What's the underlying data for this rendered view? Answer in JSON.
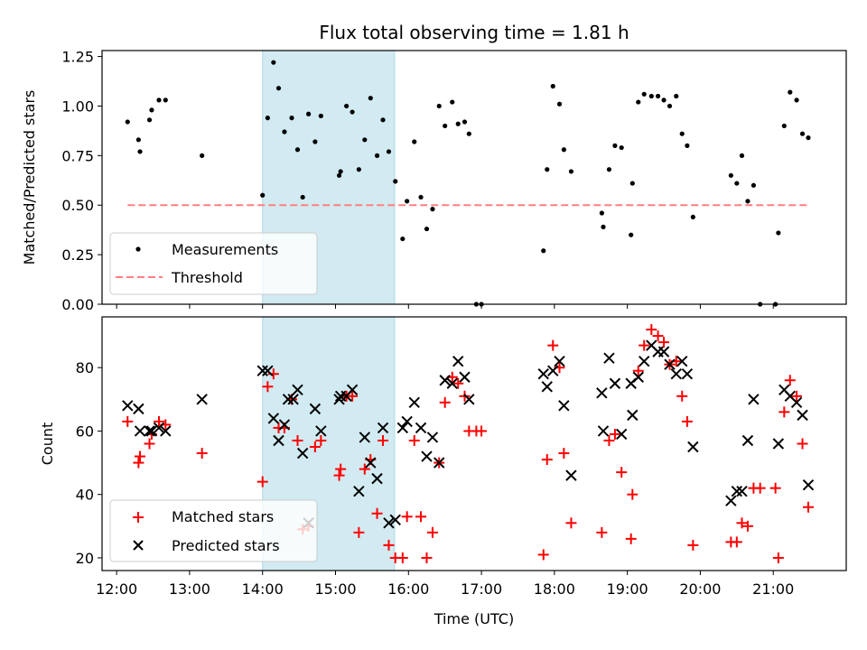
{
  "title": "Flux total observing time = 1.81 h",
  "colors": {
    "measurement": "#000000",
    "threshold": "#ff7f7f",
    "span": "#add8e6",
    "matched": "#ff0000",
    "predicted": "#000000"
  },
  "chart_data": [
    {
      "type": "scatter",
      "panel": "top",
      "ylabel": "Matched/Predicted stars",
      "xlabel": "",
      "xlim": [
        11.8,
        22.0
      ],
      "ylim": [
        0,
        1.28
      ],
      "yticks": [
        0,
        0.25,
        0.5,
        0.75,
        1.0,
        1.25
      ],
      "ytick_labels": [
        "0.00",
        "0.25",
        "0.50",
        "0.75",
        "1.00",
        "1.25"
      ],
      "highlight_span": [
        14.0,
        15.81
      ],
      "threshold": {
        "name": "Threshold",
        "value": 0.5,
        "x_range": [
          12.15,
          21.5
        ],
        "style": "dashed"
      },
      "legend": {
        "location": "lower-left",
        "entries": [
          "Measurements",
          "Threshold"
        ]
      },
      "series": [
        {
          "name": "Measurements",
          "marker": "dot",
          "points": [
            [
              12.15,
              0.92
            ],
            [
              12.3,
              0.83
            ],
            [
              12.32,
              0.77
            ],
            [
              12.45,
              0.93
            ],
            [
              12.48,
              0.98
            ],
            [
              12.58,
              1.03
            ],
            [
              12.67,
              1.03
            ],
            [
              13.17,
              0.75
            ],
            [
              14.0,
              0.55
            ],
            [
              14.07,
              0.94
            ],
            [
              14.15,
              1.22
            ],
            [
              14.22,
              1.09
            ],
            [
              14.3,
              0.87
            ],
            [
              14.4,
              0.94
            ],
            [
              14.48,
              0.78
            ],
            [
              14.55,
              0.54
            ],
            [
              14.63,
              0.96
            ],
            [
              14.72,
              0.82
            ],
            [
              14.8,
              0.95
            ],
            [
              15.05,
              0.65
            ],
            [
              15.07,
              0.67
            ],
            [
              15.15,
              1.0
            ],
            [
              15.23,
              0.97
            ],
            [
              15.32,
              0.68
            ],
            [
              15.4,
              0.83
            ],
            [
              15.48,
              1.04
            ],
            [
              15.57,
              0.75
            ],
            [
              15.65,
              0.93
            ],
            [
              15.73,
              0.77
            ],
            [
              15.82,
              0.62
            ],
            [
              15.92,
              0.33
            ],
            [
              15.98,
              0.52
            ],
            [
              16.08,
              0.82
            ],
            [
              16.17,
              0.54
            ],
            [
              16.25,
              0.38
            ],
            [
              16.33,
              0.48
            ],
            [
              16.42,
              1.0
            ],
            [
              16.5,
              0.9
            ],
            [
              16.6,
              1.02
            ],
            [
              16.68,
              0.91
            ],
            [
              16.77,
              0.92
            ],
            [
              16.83,
              0.86
            ],
            [
              16.93,
              0.0
            ],
            [
              17.0,
              0.0
            ],
            [
              17.85,
              0.27
            ],
            [
              17.9,
              0.68
            ],
            [
              17.98,
              1.1
            ],
            [
              18.07,
              1.01
            ],
            [
              18.13,
              0.78
            ],
            [
              18.23,
              0.67
            ],
            [
              18.65,
              0.46
            ],
            [
              18.67,
              0.39
            ],
            [
              18.75,
              0.68
            ],
            [
              18.83,
              0.8
            ],
            [
              18.92,
              0.79
            ],
            [
              19.07,
              0.61
            ],
            [
              19.05,
              0.35
            ],
            [
              19.15,
              1.02
            ],
            [
              19.23,
              1.06
            ],
            [
              19.33,
              1.05
            ],
            [
              19.42,
              1.05
            ],
            [
              19.5,
              1.03
            ],
            [
              19.58,
              1.0
            ],
            [
              19.67,
              1.05
            ],
            [
              19.75,
              0.86
            ],
            [
              19.82,
              0.8
            ],
            [
              19.9,
              0.44
            ],
            [
              20.42,
              0.65
            ],
            [
              20.5,
              0.61
            ],
            [
              20.57,
              0.75
            ],
            [
              20.65,
              0.52
            ],
            [
              20.73,
              0.6
            ],
            [
              20.82,
              0.0
            ],
            [
              21.03,
              0.0
            ],
            [
              21.07,
              0.36
            ],
            [
              21.15,
              0.9
            ],
            [
              21.23,
              1.07
            ],
            [
              21.32,
              1.03
            ],
            [
              21.4,
              0.86
            ],
            [
              21.48,
              0.84
            ]
          ]
        }
      ]
    },
    {
      "type": "scatter",
      "panel": "bottom",
      "ylabel": "Count",
      "xlabel": "Time (UTC)",
      "xlim": [
        11.8,
        22.0
      ],
      "ylim": [
        16,
        96
      ],
      "yticks": [
        20,
        40,
        60,
        80
      ],
      "ytick_labels": [
        "20",
        "40",
        "60",
        "80"
      ],
      "xticks": [
        12,
        13,
        14,
        15,
        16,
        17,
        18,
        19,
        20,
        21
      ],
      "xtick_labels": [
        "12:00",
        "13:00",
        "14:00",
        "15:00",
        "16:00",
        "17:00",
        "18:00",
        "19:00",
        "20:00",
        "21:00"
      ],
      "highlight_span": [
        14.0,
        15.81
      ],
      "legend": {
        "location": "lower-left",
        "entries": [
          "Matched stars",
          "Predicted stars"
        ]
      },
      "series": [
        {
          "name": "Matched stars",
          "marker": "plus",
          "points": [
            [
              12.15,
              63
            ],
            [
              12.3,
              50
            ],
            [
              12.32,
              52
            ],
            [
              12.45,
              56
            ],
            [
              12.48,
              59
            ],
            [
              12.58,
              63
            ],
            [
              12.67,
              62
            ],
            [
              13.17,
              53
            ],
            [
              14.0,
              44
            ],
            [
              14.07,
              74
            ],
            [
              14.15,
              78
            ],
            [
              14.22,
              61
            ],
            [
              14.3,
              61
            ],
            [
              14.4,
              70
            ],
            [
              14.48,
              57
            ],
            [
              14.55,
              29
            ],
            [
              14.63,
              30
            ],
            [
              14.72,
              55
            ],
            [
              14.8,
              57
            ],
            [
              15.05,
              46
            ],
            [
              15.07,
              48
            ],
            [
              15.15,
              71
            ],
            [
              15.23,
              71
            ],
            [
              15.32,
              28
            ],
            [
              15.4,
              48
            ],
            [
              15.48,
              51
            ],
            [
              15.57,
              34
            ],
            [
              15.65,
              57
            ],
            [
              15.73,
              24
            ],
            [
              15.82,
              20
            ],
            [
              15.92,
              20
            ],
            [
              15.98,
              33
            ],
            [
              16.08,
              57
            ],
            [
              16.17,
              33
            ],
            [
              16.25,
              20
            ],
            [
              16.33,
              28
            ],
            [
              16.42,
              50
            ],
            [
              16.5,
              69
            ],
            [
              16.6,
              77
            ],
            [
              16.68,
              75
            ],
            [
              16.77,
              71
            ],
            [
              16.83,
              60
            ],
            [
              16.93,
              60
            ],
            [
              17.0,
              60
            ],
            [
              17.85,
              21
            ],
            [
              17.9,
              51
            ],
            [
              17.98,
              87
            ],
            [
              18.07,
              80
            ],
            [
              18.13,
              53
            ],
            [
              18.23,
              31
            ],
            [
              18.65,
              28
            ],
            [
              18.75,
              57
            ],
            [
              18.83,
              59
            ],
            [
              18.92,
              47
            ],
            [
              19.05,
              26
            ],
            [
              19.07,
              40
            ],
            [
              19.15,
              79
            ],
            [
              19.23,
              87
            ],
            [
              19.33,
              92
            ],
            [
              19.42,
              90
            ],
            [
              19.5,
              88
            ],
            [
              19.58,
              81
            ],
            [
              19.67,
              82
            ],
            [
              19.75,
              71
            ],
            [
              19.82,
              63
            ],
            [
              19.9,
              24
            ],
            [
              20.42,
              25
            ],
            [
              20.5,
              25
            ],
            [
              20.57,
              31
            ],
            [
              20.65,
              30
            ],
            [
              20.73,
              42
            ],
            [
              20.82,
              42
            ],
            [
              21.03,
              42
            ],
            [
              21.07,
              20
            ],
            [
              21.15,
              66
            ],
            [
              21.23,
              76
            ],
            [
              21.32,
              71
            ],
            [
              21.4,
              56
            ],
            [
              21.48,
              36
            ]
          ]
        },
        {
          "name": "Predicted stars",
          "marker": "x",
          "points": [
            [
              12.15,
              68
            ],
            [
              12.3,
              67
            ],
            [
              12.32,
              60
            ],
            [
              12.45,
              60
            ],
            [
              12.48,
              60
            ],
            [
              12.58,
              61
            ],
            [
              12.67,
              60
            ],
            [
              13.17,
              70
            ],
            [
              14.0,
              79
            ],
            [
              14.07,
              79
            ],
            [
              14.15,
              64
            ],
            [
              14.22,
              57
            ],
            [
              14.3,
              62
            ],
            [
              14.35,
              70
            ],
            [
              14.42,
              70
            ],
            [
              14.48,
              73
            ],
            [
              14.55,
              53
            ],
            [
              14.63,
              31
            ],
            [
              14.72,
              67
            ],
            [
              14.8,
              60
            ],
            [
              15.05,
              70
            ],
            [
              15.07,
              71
            ],
            [
              15.15,
              71
            ],
            [
              15.23,
              73
            ],
            [
              15.32,
              41
            ],
            [
              15.4,
              58
            ],
            [
              15.48,
              50
            ],
            [
              15.57,
              45
            ],
            [
              15.65,
              61
            ],
            [
              15.73,
              31
            ],
            [
              15.82,
              32
            ],
            [
              15.92,
              61
            ],
            [
              15.98,
              63
            ],
            [
              16.08,
              69
            ],
            [
              16.17,
              61
            ],
            [
              16.25,
              52
            ],
            [
              16.33,
              58
            ],
            [
              16.42,
              50
            ],
            [
              16.5,
              76
            ],
            [
              16.6,
              75
            ],
            [
              16.68,
              82
            ],
            [
              16.77,
              77
            ],
            [
              16.83,
              70
            ],
            [
              17.85,
              78
            ],
            [
              17.9,
              74
            ],
            [
              17.98,
              79
            ],
            [
              18.07,
              82
            ],
            [
              18.13,
              68
            ],
            [
              18.23,
              46
            ],
            [
              18.65,
              72
            ],
            [
              18.67,
              60
            ],
            [
              18.75,
              83
            ],
            [
              18.83,
              75
            ],
            [
              18.92,
              59
            ],
            [
              19.05,
              75
            ],
            [
              19.07,
              65
            ],
            [
              19.15,
              77
            ],
            [
              19.23,
              82
            ],
            [
              19.33,
              87
            ],
            [
              19.42,
              85
            ],
            [
              19.5,
              85
            ],
            [
              19.58,
              81
            ],
            [
              19.67,
              78
            ],
            [
              19.75,
              82
            ],
            [
              19.82,
              78
            ],
            [
              19.9,
              55
            ],
            [
              20.42,
              38
            ],
            [
              20.5,
              41
            ],
            [
              20.57,
              41
            ],
            [
              20.65,
              57
            ],
            [
              20.73,
              70
            ],
            [
              21.07,
              56
            ],
            [
              21.15,
              73
            ],
            [
              21.23,
              71
            ],
            [
              21.32,
              69
            ],
            [
              21.4,
              65
            ],
            [
              21.48,
              43
            ]
          ]
        }
      ]
    }
  ]
}
